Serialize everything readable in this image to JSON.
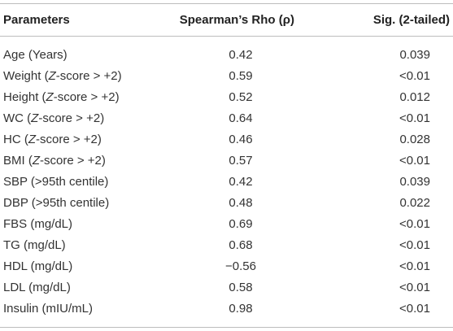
{
  "table": {
    "headers": {
      "parameters": "Parameters",
      "rho": "Spearman’s Rho (ρ)",
      "sig": "Sig. (2-tailed)"
    },
    "rows": [
      {
        "param": "Age (Years)",
        "rho": "0.42",
        "sig": "0.039"
      },
      {
        "param": "Weight (Z-score > +2)",
        "rho": "0.59",
        "sig": "<0.01"
      },
      {
        "param": "Height (Z-score > +2)",
        "rho": "0.52",
        "sig": "0.012"
      },
      {
        "param": "WC (Z-score > +2)",
        "rho": "0.64",
        "sig": "<0.01"
      },
      {
        "param": "HC (Z-score > +2)",
        "rho": "0.46",
        "sig": "0.028"
      },
      {
        "param": "BMI (Z-score > +2)",
        "rho": "0.57",
        "sig": "<0.01"
      },
      {
        "param": "SBP (>95th centile)",
        "rho": "0.42",
        "sig": "0.039"
      },
      {
        "param": "DBP (>95th centile)",
        "rho": "0.48",
        "sig": "0.022"
      },
      {
        "param": "FBS (mg/dL)",
        "rho": "0.69",
        "sig": "<0.01"
      },
      {
        "param": "TG (mg/dL)",
        "rho": "0.68",
        "sig": "<0.01"
      },
      {
        "param": "HDL (mg/dL)",
        "rho": "−0.56",
        "sig": "<0.01"
      },
      {
        "param": "LDL (mg/dL)",
        "rho": "0.58",
        "sig": "<0.01"
      },
      {
        "param": "Insulin (mIU/mL)",
        "rho": "0.98",
        "sig": "<0.01"
      }
    ]
  }
}
